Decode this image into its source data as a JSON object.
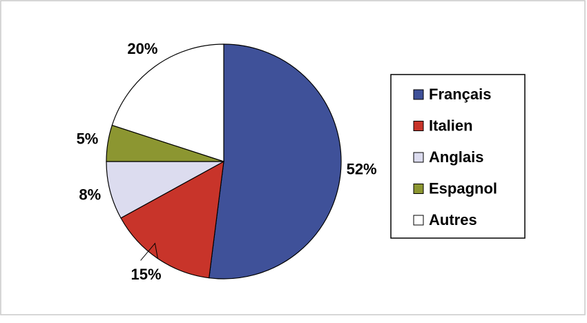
{
  "chart_data": {
    "type": "pie",
    "categories": [
      "Français",
      "Italien",
      "Anglais",
      "Espagnol",
      "Autres"
    ],
    "values": [
      52,
      15,
      8,
      5,
      20
    ],
    "value_labels": [
      "52%",
      "15%",
      "8%",
      "5%",
      "20%"
    ],
    "colors": [
      "#3f5199",
      "#c8342a",
      "#dcdcef",
      "#8c9631",
      "#ffffff"
    ],
    "legend": "right"
  }
}
